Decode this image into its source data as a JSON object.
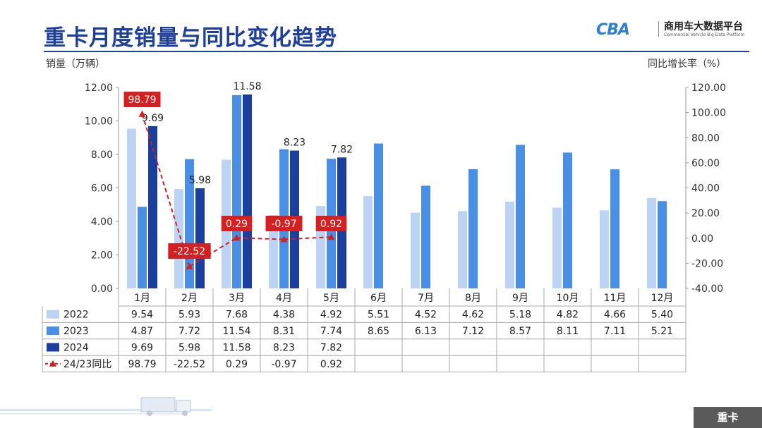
{
  "title": "重卡月度销量与同比变化趋势",
  "logo": {
    "mark": "CBA",
    "name_cn": "商用车大数据平台",
    "name_en": "Commercial Vehicle Big Data Platform"
  },
  "footer_tag": "重卡",
  "colors": {
    "s2022": "#bdd3f4",
    "s2023": "#4a8fe6",
    "s2024": "#1a3f9f",
    "yoy": "#d42020",
    "title": "#1e3f9a"
  },
  "chart_data": {
    "type": "bar",
    "ylabel_left": "销量（万辆）",
    "ylabel_right": "同比增长率（%）",
    "categories": [
      "1月",
      "2月",
      "3月",
      "4月",
      "5月",
      "6月",
      "7月",
      "8月",
      "9月",
      "10月",
      "11月",
      "12月"
    ],
    "ylim_left": [
      0,
      12
    ],
    "ylim_right": [
      -40,
      120
    ],
    "yticks_left": [
      "0.00",
      "2.00",
      "4.00",
      "6.00",
      "8.00",
      "10.00",
      "12.00"
    ],
    "yticks_right": [
      "-40.00",
      "-20.00",
      "0.00",
      "20.00",
      "40.00",
      "60.00",
      "80.00",
      "100.00",
      "120.00"
    ],
    "series": [
      {
        "name": "2022",
        "kind": "bar",
        "color": "#bdd3f4",
        "values": [
          9.54,
          5.93,
          7.68,
          4.38,
          4.92,
          5.51,
          4.52,
          4.62,
          5.18,
          4.82,
          4.66,
          5.4
        ],
        "table": [
          "9.54",
          "5.93",
          "7.68",
          "4.38",
          "4.92",
          "5.51",
          "4.52",
          "4.62",
          "5.18",
          "4.82",
          "4.66",
          "5.40"
        ]
      },
      {
        "name": "2023",
        "kind": "bar",
        "color": "#4a8fe6",
        "values": [
          4.87,
          7.72,
          11.54,
          8.31,
          7.74,
          8.65,
          6.13,
          7.12,
          8.57,
          8.11,
          7.11,
          5.21
        ],
        "table": [
          "4.87",
          "7.72",
          "11.54",
          "8.31",
          "7.74",
          "8.65",
          "6.13",
          "7.12",
          "8.57",
          "8.11",
          "7.11",
          "5.21"
        ]
      },
      {
        "name": "2024",
        "kind": "bar",
        "color": "#1a3f9f",
        "values": [
          9.69,
          5.98,
          11.58,
          8.23,
          7.82,
          null,
          null,
          null,
          null,
          null,
          null,
          null
        ],
        "table": [
          "9.69",
          "5.98",
          "11.58",
          "8.23",
          "7.82",
          "",
          "",
          "",
          "",
          "",
          "",
          ""
        ],
        "labels": [
          "9.69",
          "5.98",
          "11.58",
          "8.23",
          "7.82"
        ]
      },
      {
        "name": "24/23同比",
        "kind": "line",
        "axis": "right",
        "color": "#d42020",
        "values": [
          98.79,
          -22.52,
          0.29,
          -0.97,
          0.92,
          null,
          null,
          null,
          null,
          null,
          null,
          null
        ],
        "table": [
          "98.79",
          "-22.52",
          "0.29",
          "-0.97",
          "0.92",
          "",
          "",
          "",
          "",
          "",
          "",
          ""
        ],
        "labels": [
          "98.79",
          "-22.52",
          "0.29",
          "-0.97",
          "0.92"
        ]
      }
    ],
    "grid": false,
    "legend": "data-table"
  }
}
